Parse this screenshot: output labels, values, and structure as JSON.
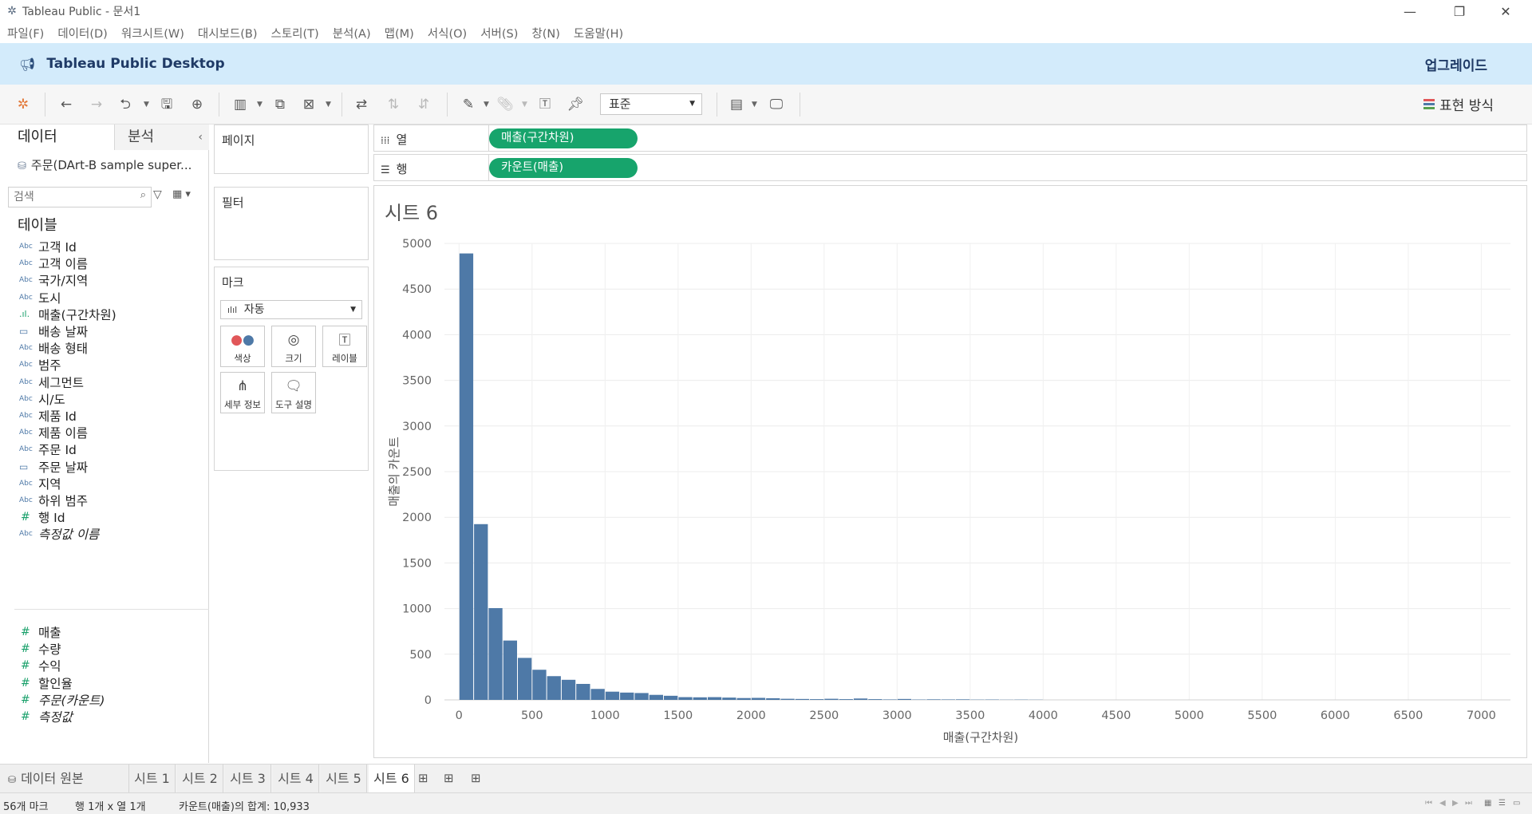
{
  "window": {
    "title": "Tableau Public - 문서1"
  },
  "menu": [
    "파일(F)",
    "데이터(D)",
    "워크시트(W)",
    "대시보드(B)",
    "스토리(T)",
    "분석(A)",
    "맵(M)",
    "서식(O)",
    "서버(S)",
    "창(N)",
    "도움말(H)"
  ],
  "banner": {
    "title": "Tableau Public Desktop",
    "upgrade": "업그레이드"
  },
  "toolbar": {
    "fit_value": "표준",
    "show_me": "표현 방식"
  },
  "data_pane": {
    "tab_data": "데이터",
    "tab_analysis": "분석",
    "datasource": "주문(DArt-B sample super...",
    "search_placeholder": "검색",
    "tables_title": "테이블",
    "dimensions": [
      {
        "type": "Abc",
        "name": "고객 Id"
      },
      {
        "type": "Abc",
        "name": "고객 이름"
      },
      {
        "type": "Abc",
        "name": "국가/지역"
      },
      {
        "type": "Abc",
        "name": "도시"
      },
      {
        "type": "bin",
        "name": "매출(구간차원)"
      },
      {
        "type": "date",
        "name": "배송 날짜"
      },
      {
        "type": "Abc",
        "name": "배송 형태"
      },
      {
        "type": "Abc",
        "name": "범주"
      },
      {
        "type": "Abc",
        "name": "세그먼트"
      },
      {
        "type": "Abc",
        "name": "시/도"
      },
      {
        "type": "Abc",
        "name": "제품 Id"
      },
      {
        "type": "Abc",
        "name": "제품 이름"
      },
      {
        "type": "Abc",
        "name": "주문 Id"
      },
      {
        "type": "date",
        "name": "주문 날짜"
      },
      {
        "type": "Abc",
        "name": "지역"
      },
      {
        "type": "Abc",
        "name": "하위 범주"
      },
      {
        "type": "#",
        "name": "행 Id"
      },
      {
        "type": "Abc",
        "name": "측정값 이름",
        "italic": true
      }
    ],
    "measures": [
      {
        "type": "#",
        "name": "매출"
      },
      {
        "type": "#",
        "name": "수량"
      },
      {
        "type": "#",
        "name": "수익"
      },
      {
        "type": "#",
        "name": "할인율"
      },
      {
        "type": "#",
        "name": "주문(카운트)",
        "italic": true
      },
      {
        "type": "#",
        "name": "측정값",
        "italic": true
      }
    ]
  },
  "cards": {
    "pages": "페이지",
    "filters": "필터",
    "marks": "마크",
    "mark_type": "자동",
    "mark_buttons": [
      {
        "label": "색상",
        "icon": "color-icon"
      },
      {
        "label": "크기",
        "icon": "size-icon"
      },
      {
        "label": "레이블",
        "icon": "label-icon"
      },
      {
        "label": "세부 정보",
        "icon": "detail-icon"
      },
      {
        "label": "도구 설명",
        "icon": "tooltip-icon"
      }
    ]
  },
  "shelves": {
    "columns_label": "열",
    "columns_pill": "매출(구간차원)",
    "rows_label": "행",
    "rows_pill": "카운트(매출)"
  },
  "sheet_title": "시트 6",
  "chart_data": {
    "type": "bar",
    "bin_width": 100,
    "x": [
      0,
      100,
      200,
      300,
      400,
      500,
      600,
      700,
      800,
      900,
      1000,
      1100,
      1200,
      1300,
      1400,
      1500,
      1600,
      1700,
      1800,
      1900,
      2000,
      2100,
      2200,
      2300,
      2400,
      2500,
      2600,
      2700,
      2800,
      2900,
      3000,
      3100,
      3200,
      3300,
      3400,
      3500,
      3600,
      3700,
      3800,
      3900
    ],
    "values": [
      4890,
      1925,
      1005,
      650,
      460,
      330,
      260,
      220,
      175,
      120,
      90,
      80,
      75,
      55,
      45,
      30,
      28,
      30,
      25,
      20,
      22,
      18,
      12,
      10,
      8,
      12,
      8,
      15,
      8,
      5,
      10,
      4,
      6,
      5,
      6,
      3,
      4,
      2,
      3,
      2
    ],
    "xlabel": "매출(구간차원)",
    "ylabel": "매출의 카운트",
    "xlim": [
      -100,
      7200
    ],
    "ylim": [
      0,
      5000
    ],
    "x_ticks": [
      0,
      500,
      1000,
      1500,
      2000,
      2500,
      3000,
      3500,
      4000,
      4500,
      5000,
      5500,
      6000,
      6500,
      7000
    ],
    "y_ticks": [
      0,
      500,
      1000,
      1500,
      2000,
      2500,
      3000,
      3500,
      4000,
      4500,
      5000
    ],
    "bar_color": "#4e79a7",
    "grid": true
  },
  "tabs": {
    "data_source": "데이터 원본",
    "sheets": [
      "시트 1",
      "시트 2",
      "시트 3",
      "시트 4",
      "시트 5",
      "시트 6"
    ],
    "active": "시트 6"
  },
  "status": {
    "marks": "56개 마크",
    "dims": "행 1개  x  열 1개",
    "sum": "카운트(매출)의 합계: 10,933"
  }
}
